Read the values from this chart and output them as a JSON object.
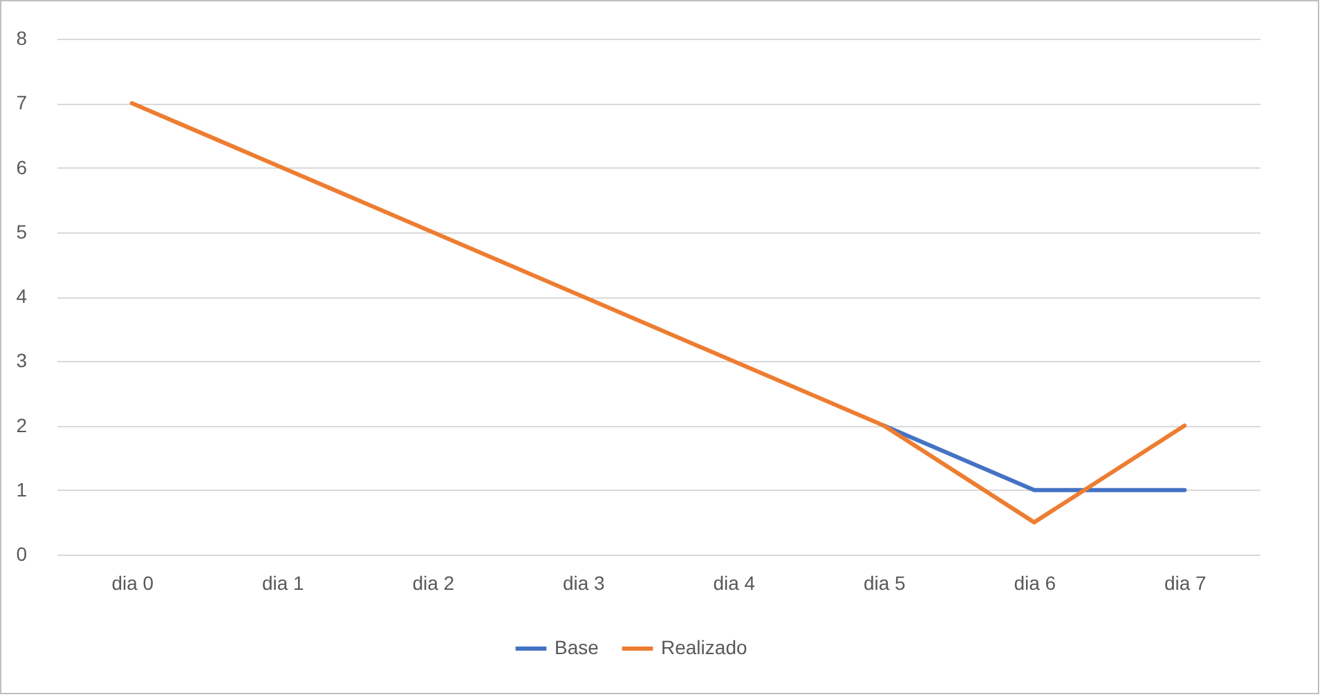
{
  "chart_data": {
    "type": "line",
    "categories": [
      "dia 0",
      "dia 1",
      "dia 2",
      "dia 3",
      "dia 4",
      "dia 5",
      "dia 6",
      "dia 7"
    ],
    "series": [
      {
        "name": "Base",
        "color": "#4472c4",
        "values": [
          null,
          null,
          null,
          null,
          null,
          2,
          1,
          1
        ]
      },
      {
        "name": "Realizado",
        "color": "#ed7d31",
        "values": [
          7,
          6,
          5,
          4,
          3,
          2,
          0.5,
          2
        ]
      }
    ],
    "ylim": [
      0,
      8
    ],
    "yticks": [
      0,
      1,
      2,
      3,
      4,
      5,
      6,
      7,
      8
    ],
    "grid": "y",
    "legend": "bottom",
    "line_style": "solid",
    "marker": "none"
  }
}
